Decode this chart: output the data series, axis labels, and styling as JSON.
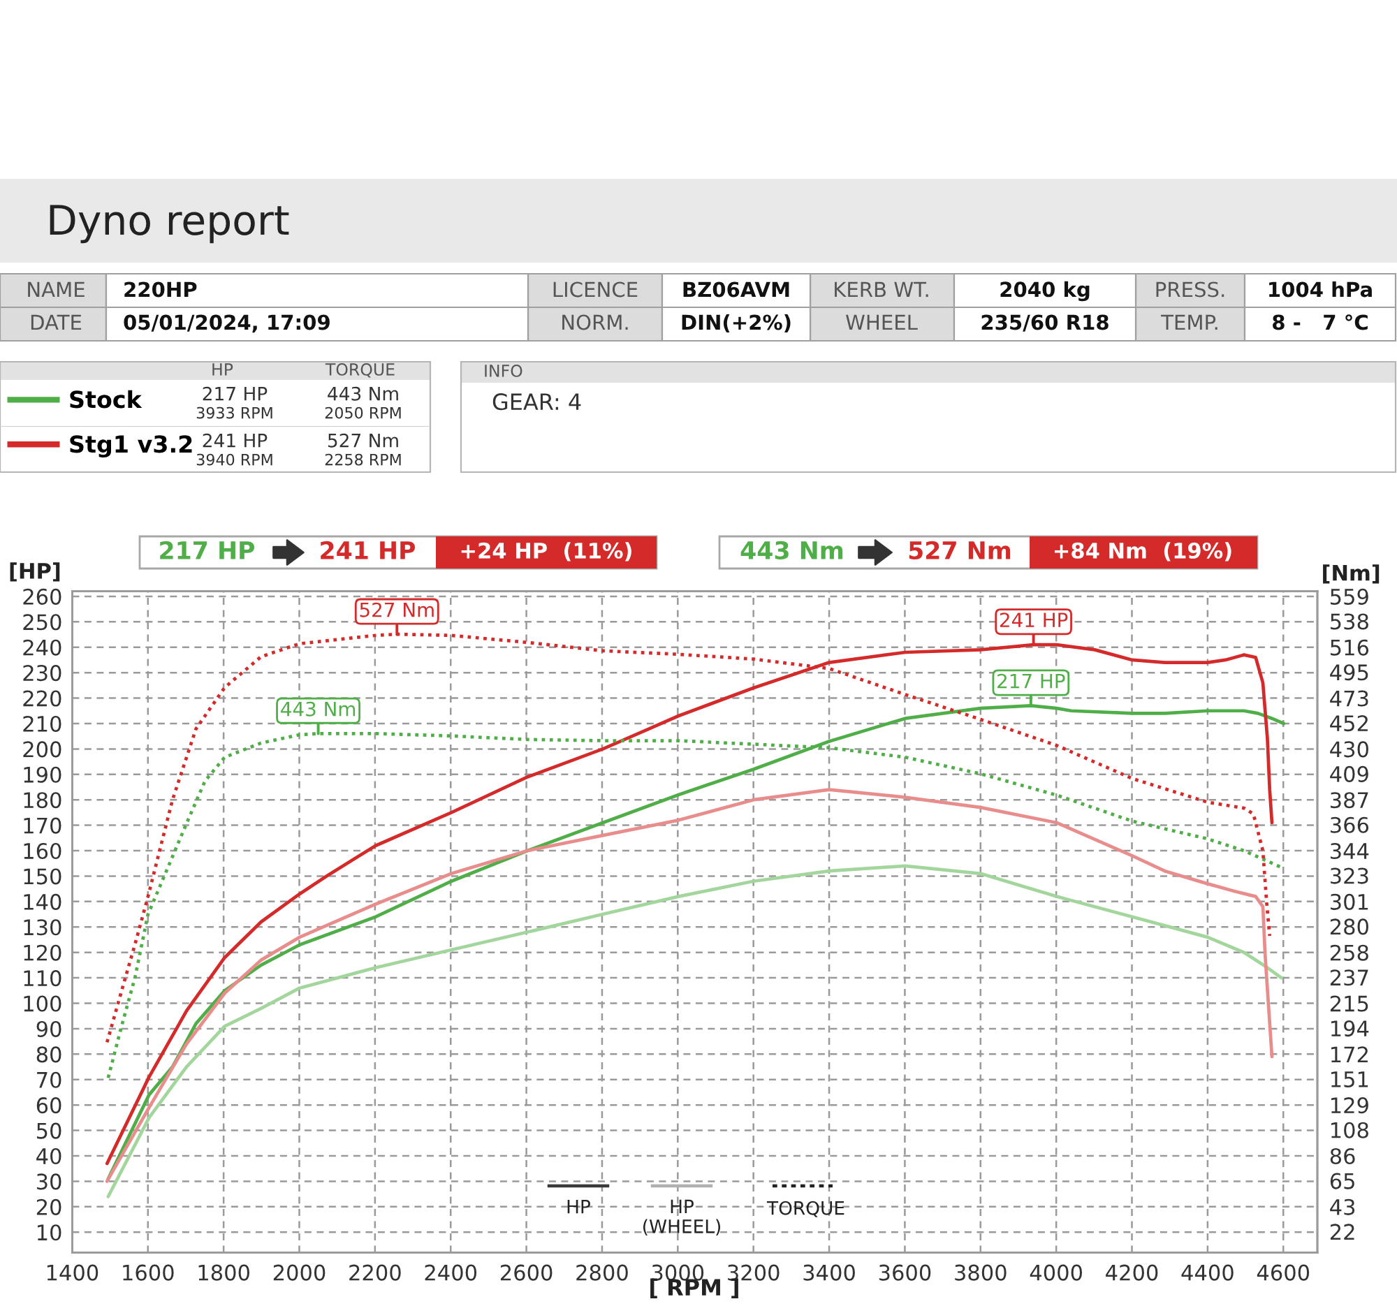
{
  "chart_data": {
    "type": "line",
    "title": "Dyno report",
    "xlabel": "[ RPM ]",
    "ylabel": "[HP]",
    "y2label": "[Nm]",
    "xlim": [
      1400,
      4690
    ],
    "xticks": [
      1400,
      1600,
      1800,
      2000,
      2200,
      2400,
      2600,
      2800,
      3000,
      3200,
      3400,
      3600,
      3800,
      4000,
      4200,
      4400,
      4600
    ],
    "ylim": [
      2,
      262
    ],
    "yticks": [
      10,
      20,
      30,
      40,
      50,
      60,
      70,
      80,
      90,
      100,
      110,
      120,
      130,
      140,
      150,
      160,
      170,
      180,
      190,
      200,
      210,
      220,
      230,
      240,
      250,
      260
    ],
    "y2lim": [
      4.3,
      563.3
    ],
    "y2ticks": [
      22,
      43,
      65,
      86,
      108,
      129,
      151,
      172,
      194,
      215,
      237,
      258,
      280,
      301,
      323,
      344,
      366,
      387,
      409,
      430,
      452,
      473,
      495,
      516,
      538,
      559
    ],
    "grid": true,
    "legend": "top left",
    "line_style": "solid",
    "series": [
      {
        "name": "Stock",
        "color": "#4fae47",
        "x": [
          1495,
          1603,
          1665,
          1727,
          1803,
          1899,
          2001,
          2202,
          2402,
          2603,
          2802,
          3002,
          3200,
          3400,
          3601,
          3800,
          3933,
          4001,
          4040,
          4201,
          4287,
          4400,
          4496,
          4533,
          4570,
          4601
        ],
        "values": [
          31,
          64,
          75,
          92,
          105,
          115,
          123,
          134,
          148,
          160,
          171,
          182,
          192,
          203,
          212,
          216,
          217,
          216,
          215,
          214,
          214,
          215,
          215,
          214,
          212,
          210
        ]
      },
      {
        "name": "Stg1 v3.2",
        "color": "#d42a2a",
        "x": [
          1492,
          1603,
          1702,
          1803,
          1899,
          2001,
          2072,
          2202,
          2402,
          2603,
          2802,
          2910,
          3002,
          3200,
          3400,
          3601,
          3800,
          3940,
          4001,
          4102,
          4201,
          4287,
          4400,
          4447,
          4496,
          4527,
          4546,
          4558,
          4564,
          4570
        ],
        "values": [
          37,
          71,
          97,
          118,
          132,
          143,
          150,
          162,
          175,
          189,
          200,
          207,
          213,
          224,
          234,
          238,
          239,
          241,
          241,
          239,
          235,
          234,
          234,
          235,
          237,
          236,
          226,
          204,
          184,
          171
        ]
      },
      {
        "color": "#a3d69c",
        "x": [
          1495,
          1603,
          1702,
          1803,
          1899,
          2001,
          2202,
          2402,
          2603,
          2802,
          3002,
          3200,
          3400,
          3601,
          3800,
          4001,
          4201,
          4400,
          4496,
          4558,
          4595
        ],
        "values": [
          24,
          55,
          75,
          91,
          98,
          106,
          114,
          121,
          128,
          135,
          142,
          148,
          152,
          154,
          151,
          142,
          134,
          126,
          120,
          114,
          110
        ]
      },
      {
        "color": "#e98c8c",
        "x": [
          1492,
          1603,
          1702,
          1803,
          1899,
          2001,
          2202,
          2402,
          2603,
          2802,
          3002,
          3200,
          3400,
          3601,
          3800,
          4001,
          4201,
          4287,
          4400,
          4472,
          4527,
          4546,
          4552,
          4560,
          4570
        ],
        "values": [
          30,
          59,
          84,
          104,
          117,
          126,
          139,
          151,
          160,
          166,
          172,
          180,
          184,
          181,
          177,
          171,
          158,
          152,
          147,
          144,
          142,
          138,
          119,
          101,
          79
        ]
      },
      {
        "color": "#4fae47",
        "axis": "y2",
        "line_style": "dotted",
        "x": [
          1495,
          1529,
          1566,
          1600,
          1702,
          1751,
          1803,
          1899,
          2001,
          2050,
          2202,
          2402,
          2603,
          2802,
          3002,
          3200,
          3400,
          3601,
          3800,
          4001,
          4201,
          4400,
          4496,
          4601
        ],
        "values": [
          152,
          194,
          237,
          290,
          367,
          403,
          423,
          435,
          442,
          443,
          443,
          441,
          438,
          437,
          437,
          434,
          431,
          423,
          409,
          391,
          369,
          354,
          344,
          329
        ]
      },
      {
        "color": "#d42a2a",
        "axis": "y2",
        "line_style": "dotted",
        "x": [
          1492,
          1530,
          1566,
          1600,
          1665,
          1727,
          1803,
          1899,
          2001,
          2202,
          2258,
          2402,
          2603,
          2802,
          3002,
          3200,
          3400,
          3601,
          3800,
          4001,
          4201,
          4400,
          4496,
          4521,
          4546,
          4556,
          4564
        ],
        "values": [
          182,
          225,
          265,
          305,
          387,
          447,
          482,
          508,
          519,
          526,
          527,
          526,
          520,
          513,
          510,
          506,
          498,
          476,
          455,
          433,
          405,
          385,
          380,
          375,
          344,
          300,
          272
        ]
      }
    ],
    "annotations": [
      "NAME",
      "220HP",
      "DATE",
      "05/01/2024, 17:09",
      "LICENCE",
      "BZ06AVM",
      "NORM.",
      "DIN(+2%)",
      "KERB WT.",
      "2040 kg",
      "WHEEL",
      "235/60 R18",
      "PRESS.",
      "1004 hPa",
      "TEMP.",
      "8 -   7 °C",
      "HP",
      "TORQUE",
      "217 HP",
      "3933 RPM",
      "443 Nm",
      "2050 RPM",
      "241 HP",
      "3940 RPM",
      "527 Nm",
      "2258 RPM",
      "INFO",
      "GEAR: 4",
      "217 HP",
      "241 HP",
      "+24 HP  (11%)",
      "443 Nm",
      "527 Nm",
      "+84 Nm  (19%)",
      "HP",
      "HP\n(WHEEL)",
      "TORQUE",
      {
        "text": "527 Nm",
        "x": 2258,
        "y": 245
      },
      {
        "text": "443 Nm",
        "x": 2050,
        "y": 206
      },
      {
        "text": "241 HP",
        "x": 3940,
        "y": 241
      },
      {
        "text": "217 HP",
        "x": 3933,
        "y": 217
      }
    ]
  }
}
